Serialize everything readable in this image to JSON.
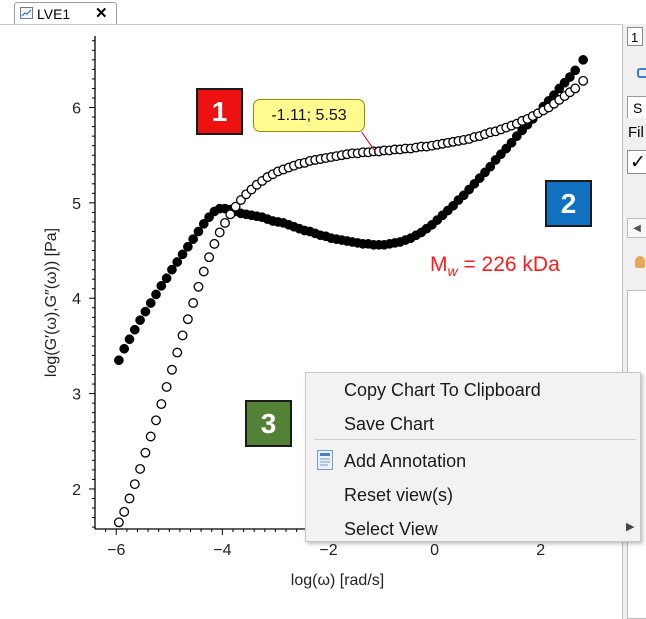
{
  "tab": {
    "label": "LVE1",
    "close_glyph": "✕",
    "icon": "chart-icon"
  },
  "chart_data": [
    {
      "type": "scatter",
      "xlabel": "log(ω) [rad/s]",
      "ylabel": "log(G′(ω),G″(ω)) [Pa]",
      "xlim": [
        -6.4,
        3.4
      ],
      "ylim": [
        1.58,
        6.75
      ],
      "x_ticks": [
        -6,
        -4,
        -2,
        0,
        2
      ],
      "y_ticks": [
        2,
        3,
        4,
        5,
        6
      ],
      "x_tick_labels": [
        "−6",
        "−4",
        "−2",
        "0",
        "2"
      ],
      "y_tick_labels": [
        "2",
        "3",
        "4",
        "5",
        "6"
      ],
      "grid": false,
      "series": [
        {
          "marker": "filled-circle",
          "color": "#000000",
          "points": [
            [
              -5.95,
              3.35
            ],
            [
              -5.85,
              3.47
            ],
            [
              -5.75,
              3.57
            ],
            [
              -5.65,
              3.67
            ],
            [
              -5.55,
              3.77
            ],
            [
              -5.45,
              3.86
            ],
            [
              -5.35,
              3.95
            ],
            [
              -5.25,
              4.04
            ],
            [
              -5.15,
              4.13
            ],
            [
              -5.05,
              4.21
            ],
            [
              -4.95,
              4.3
            ],
            [
              -4.85,
              4.38
            ],
            [
              -4.75,
              4.46
            ],
            [
              -4.65,
              4.54
            ],
            [
              -4.55,
              4.62
            ],
            [
              -4.45,
              4.7
            ],
            [
              -4.35,
              4.78
            ],
            [
              -4.25,
              4.85
            ],
            [
              -4.15,
              4.91
            ],
            [
              -4.05,
              4.94
            ],
            [
              -3.95,
              4.94
            ],
            [
              -3.85,
              4.93
            ],
            [
              -3.75,
              4.91
            ],
            [
              -3.65,
              4.89
            ],
            [
              -3.55,
              4.88
            ],
            [
              -3.45,
              4.87
            ],
            [
              -3.35,
              4.86
            ],
            [
              -3.25,
              4.85
            ],
            [
              -3.15,
              4.83
            ],
            [
              -3.05,
              4.81
            ],
            [
              -2.95,
              4.8
            ],
            [
              -2.85,
              4.79
            ],
            [
              -2.75,
              4.77
            ],
            [
              -2.65,
              4.75
            ],
            [
              -2.55,
              4.73
            ],
            [
              -2.45,
              4.71
            ],
            [
              -2.35,
              4.7
            ],
            [
              -2.25,
              4.68
            ],
            [
              -2.15,
              4.66
            ],
            [
              -2.05,
              4.65
            ],
            [
              -1.95,
              4.63
            ],
            [
              -1.85,
              4.62
            ],
            [
              -1.75,
              4.61
            ],
            [
              -1.65,
              4.6
            ],
            [
              -1.55,
              4.59
            ],
            [
              -1.45,
              4.58
            ],
            [
              -1.35,
              4.57
            ],
            [
              -1.25,
              4.57
            ],
            [
              -1.15,
              4.56
            ],
            [
              -1.05,
              4.56
            ],
            [
              -0.95,
              4.56
            ],
            [
              -0.85,
              4.57
            ],
            [
              -0.75,
              4.58
            ],
            [
              -0.65,
              4.59
            ],
            [
              -0.55,
              4.61
            ],
            [
              -0.45,
              4.63
            ],
            [
              -0.35,
              4.66
            ],
            [
              -0.25,
              4.69
            ],
            [
              -0.15,
              4.73
            ],
            [
              -0.05,
              4.77
            ],
            [
              0.05,
              4.82
            ],
            [
              0.15,
              4.87
            ],
            [
              0.25,
              4.92
            ],
            [
              0.35,
              4.97
            ],
            [
              0.45,
              5.03
            ],
            [
              0.55,
              5.08
            ],
            [
              0.65,
              5.14
            ],
            [
              0.75,
              5.2
            ],
            [
              0.85,
              5.26
            ],
            [
              0.95,
              5.32
            ],
            [
              1.05,
              5.38
            ],
            [
              1.15,
              5.45
            ],
            [
              1.25,
              5.51
            ],
            [
              1.35,
              5.57
            ],
            [
              1.45,
              5.63
            ],
            [
              1.55,
              5.7
            ],
            [
              1.65,
              5.76
            ],
            [
              1.75,
              5.82
            ],
            [
              1.85,
              5.88
            ],
            [
              1.95,
              5.94
            ],
            [
              2.05,
              6.01
            ],
            [
              2.15,
              6.07
            ],
            [
              2.25,
              6.13
            ],
            [
              2.35,
              6.2
            ],
            [
              2.45,
              6.26
            ],
            [
              2.55,
              6.32
            ],
            [
              2.65,
              6.39
            ],
            [
              2.8,
              6.5
            ]
          ]
        },
        {
          "marker": "open-circle",
          "color": "#000000",
          "points": [
            [
              -5.95,
              1.65
            ],
            [
              -5.85,
              1.76
            ],
            [
              -5.75,
              1.9
            ],
            [
              -5.65,
              2.05
            ],
            [
              -5.55,
              2.21
            ],
            [
              -5.45,
              2.38
            ],
            [
              -5.35,
              2.55
            ],
            [
              -5.25,
              2.72
            ],
            [
              -5.15,
              2.89
            ],
            [
              -5.05,
              3.07
            ],
            [
              -4.95,
              3.25
            ],
            [
              -4.85,
              3.43
            ],
            [
              -4.75,
              3.61
            ],
            [
              -4.65,
              3.78
            ],
            [
              -4.55,
              3.95
            ],
            [
              -4.45,
              4.12
            ],
            [
              -4.35,
              4.28
            ],
            [
              -4.25,
              4.43
            ],
            [
              -4.15,
              4.57
            ],
            [
              -4.05,
              4.69
            ],
            [
              -3.95,
              4.79
            ],
            [
              -3.85,
              4.88
            ],
            [
              -3.75,
              4.96
            ],
            [
              -3.65,
              5.03
            ],
            [
              -3.55,
              5.09
            ],
            [
              -3.45,
              5.14
            ],
            [
              -3.35,
              5.19
            ],
            [
              -3.25,
              5.23
            ],
            [
              -3.15,
              5.27
            ],
            [
              -3.05,
              5.3
            ],
            [
              -2.95,
              5.33
            ],
            [
              -2.85,
              5.35
            ],
            [
              -2.75,
              5.37
            ],
            [
              -2.65,
              5.39
            ],
            [
              -2.55,
              5.41
            ],
            [
              -2.45,
              5.42
            ],
            [
              -2.35,
              5.44
            ],
            [
              -2.25,
              5.45
            ],
            [
              -2.15,
              5.46
            ],
            [
              -2.05,
              5.47
            ],
            [
              -1.95,
              5.48
            ],
            [
              -1.85,
              5.49
            ],
            [
              -1.75,
              5.5
            ],
            [
              -1.65,
              5.51
            ],
            [
              -1.55,
              5.52
            ],
            [
              -1.45,
              5.52
            ],
            [
              -1.35,
              5.53
            ],
            [
              -1.25,
              5.53
            ],
            [
              -1.15,
              5.54
            ],
            [
              -1.05,
              5.54
            ],
            [
              -0.95,
              5.55
            ],
            [
              -0.85,
              5.55
            ],
            [
              -0.75,
              5.56
            ],
            [
              -0.65,
              5.56
            ],
            [
              -0.55,
              5.57
            ],
            [
              -0.45,
              5.57
            ],
            [
              -0.35,
              5.58
            ],
            [
              -0.25,
              5.59
            ],
            [
              -0.15,
              5.59
            ],
            [
              -0.05,
              5.6
            ],
            [
              0.05,
              5.61
            ],
            [
              0.15,
              5.62
            ],
            [
              0.25,
              5.63
            ],
            [
              0.35,
              5.64
            ],
            [
              0.45,
              5.65
            ],
            [
              0.55,
              5.66
            ],
            [
              0.65,
              5.67
            ],
            [
              0.75,
              5.69
            ],
            [
              0.85,
              5.7
            ],
            [
              0.95,
              5.72
            ],
            [
              1.05,
              5.74
            ],
            [
              1.15,
              5.75
            ],
            [
              1.25,
              5.77
            ],
            [
              1.35,
              5.79
            ],
            [
              1.45,
              5.81
            ],
            [
              1.55,
              5.83
            ],
            [
              1.65,
              5.86
            ],
            [
              1.75,
              5.88
            ],
            [
              1.85,
              5.91
            ],
            [
              1.95,
              5.94
            ],
            [
              2.05,
              5.97
            ],
            [
              2.15,
              6.0
            ],
            [
              2.25,
              6.04
            ],
            [
              2.35,
              6.08
            ],
            [
              2.45,
              6.12
            ],
            [
              2.55,
              6.16
            ],
            [
              2.65,
              6.2
            ],
            [
              2.8,
              6.28
            ]
          ]
        }
      ],
      "annotations": {
        "tooltip": "-1.11; 5.53",
        "tooltip_point": [
          -1.11,
          5.53
        ],
        "mw_text": "M",
        "mw_sub": "w",
        "mw_rest": " = 226 kDa",
        "mw_color": "#ff1a1a"
      }
    }
  ],
  "badges": [
    {
      "label": "1",
      "color": "#ee1111"
    },
    {
      "label": "2",
      "color": "#1170c0"
    },
    {
      "label": "3",
      "color": "#538135"
    }
  ],
  "context_menu": {
    "items": [
      {
        "label": "Copy Chart To Clipboard"
      },
      {
        "label": "Save Chart"
      },
      {
        "label": "Add Annotation",
        "icon": "annotation-icon"
      },
      {
        "label": "Reset view(s)"
      },
      {
        "label": "Select View",
        "submenu_glyph": "▶"
      }
    ]
  },
  "right_panel": {
    "number_box": "1",
    "tab_partial": "S",
    "file_partial": "Fil",
    "checkmark": "✓",
    "scroll_left_glyph": "◀"
  }
}
